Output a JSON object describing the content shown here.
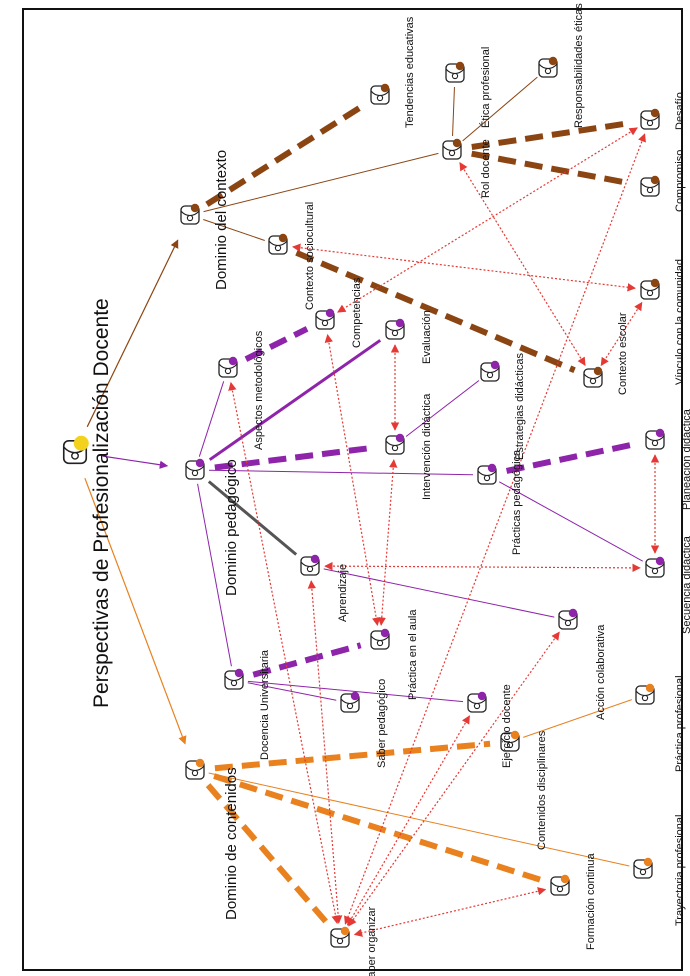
{
  "title": "Perspectivas de Profesionalización Docente",
  "colors": {
    "contexto": "#8B4513",
    "pedagogico": "#8E24AA",
    "contenidos": "#E8811E",
    "red": "#E53935",
    "root": "#F2D21C",
    "ink": "#222222"
  },
  "nodes": {
    "root": "",
    "dom_contexto": "Dominio del contexto",
    "dom_pedagogico": "Dominio pedagógico",
    "dom_contenidos": "Dominio de contenidos",
    "tendencias": "Tendencias educativas",
    "etica": "Ética profesional",
    "responsabilidades": "Responsabilidades éticas",
    "rol": "Rol docente",
    "desafio": "Desafío",
    "compromiso": "Compromiso",
    "sociocultural": "Contexto sociocultural",
    "vinculo": "Vínculo con la comunidad",
    "escolar": "Contexto escolar",
    "competencias": "Competencias",
    "aspectos": "Aspectos metodológicos",
    "evaluacion": "Evaluación",
    "intervencion": "Intervención didáctica",
    "estrategias": "Estrategias didácticas",
    "practicas_ped": "Prácticas pedagógica",
    "planeacion": "Planeación didáctica",
    "secuencia": "Secuencia didáctica",
    "aprendizaje": "Aprendizaje",
    "practica_aula": "Práctica en el aula",
    "accion": "Acción colaborativa",
    "docencia": "Docencia Universitaria",
    "saber_ped": "Saber pedagógico",
    "ejercicio": "Ejercicio docente",
    "contenidos_disc": "Contenidos disciplinares",
    "practica_prof": "Práctica profesional",
    "trayectoria": "Trayectoria profesional",
    "formacion": "Formación continua",
    "saber_org": "Saber organizar"
  }
}
